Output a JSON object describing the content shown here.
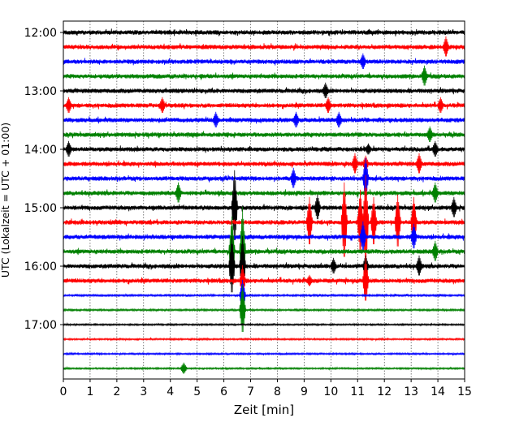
{
  "chart_data": {
    "type": "line",
    "chart_kind": "helicorder",
    "xlabel": "Zeit  [min]",
    "ylabel": "UTC (Lokalzeit = UTC + 01:00)",
    "xlim": [
      0,
      15
    ],
    "x_ticks": [
      0,
      1,
      2,
      3,
      4,
      5,
      6,
      7,
      8,
      9,
      10,
      11,
      12,
      13,
      14,
      15
    ],
    "grid": "x-only, dotted",
    "line_interval_min": 15,
    "trace_color_cycle": [
      "#000000",
      "#ff0000",
      "#0000ff",
      "#008000"
    ],
    "y_tick_labels": [
      "12:00",
      "13:00",
      "14:00",
      "15:00",
      "16:00",
      "17:00"
    ],
    "traces": [
      {
        "start": "12:00",
        "amp": 1.0,
        "spikes": []
      },
      {
        "start": "12:15",
        "amp": 1.0,
        "spikes": [
          {
            "t": 14.3,
            "a": 4
          }
        ]
      },
      {
        "start": "12:30",
        "amp": 1.0,
        "spikes": [
          {
            "t": 11.2,
            "a": 3
          }
        ]
      },
      {
        "start": "12:45",
        "amp": 1.0,
        "spikes": [
          {
            "t": 13.5,
            "a": 4
          }
        ]
      },
      {
        "start": "13:00",
        "amp": 1.0,
        "spikes": [
          {
            "t": 9.8,
            "a": 3
          }
        ]
      },
      {
        "start": "13:15",
        "amp": 1.0,
        "spikes": [
          {
            "t": 0.2,
            "a": 3
          },
          {
            "t": 3.7,
            "a": 3
          },
          {
            "t": 9.9,
            "a": 3
          },
          {
            "t": 14.1,
            "a": 3
          }
        ]
      },
      {
        "start": "13:30",
        "amp": 1.0,
        "spikes": [
          {
            "t": 5.7,
            "a": 3
          },
          {
            "t": 8.7,
            "a": 3
          },
          {
            "t": 10.3,
            "a": 3
          }
        ]
      },
      {
        "start": "13:45",
        "amp": 1.0,
        "spikes": [
          {
            "t": 13.7,
            "a": 3
          }
        ]
      },
      {
        "start": "14:00",
        "amp": 1.0,
        "spikes": [
          {
            "t": 0.2,
            "a": 3
          },
          {
            "t": 11.4,
            "a": 2
          },
          {
            "t": 13.9,
            "a": 3
          }
        ]
      },
      {
        "start": "14:15",
        "amp": 1.0,
        "spikes": [
          {
            "t": 10.9,
            "a": 4
          },
          {
            "t": 11.3,
            "a": 3
          },
          {
            "t": 13.3,
            "a": 4
          }
        ]
      },
      {
        "start": "14:30",
        "amp": 1.0,
        "spikes": [
          {
            "t": 8.6,
            "a": 4
          },
          {
            "t": 11.3,
            "a": 8
          }
        ]
      },
      {
        "start": "14:45",
        "amp": 1.0,
        "spikes": [
          {
            "t": 4.3,
            "a": 4
          },
          {
            "t": 13.9,
            "a": 4
          }
        ]
      },
      {
        "start": "15:00",
        "amp": 1.0,
        "spikes": [
          {
            "t": 6.4,
            "a": 15
          },
          {
            "t": 9.5,
            "a": 5
          },
          {
            "t": 14.6,
            "a": 4
          }
        ]
      },
      {
        "start": "15:15",
        "amp": 1.0,
        "spikes": [
          {
            "t": 9.2,
            "a": 10
          },
          {
            "t": 10.5,
            "a": 16
          },
          {
            "t": 11.1,
            "a": 13
          },
          {
            "t": 11.3,
            "a": 19
          },
          {
            "t": 11.6,
            "a": 10
          },
          {
            "t": 12.5,
            "a": 11
          },
          {
            "t": 13.1,
            "a": 10
          }
        ]
      },
      {
        "start": "15:30",
        "amp": 1.0,
        "spikes": [
          {
            "t": 11.2,
            "a": 6
          },
          {
            "t": 13.1,
            "a": 5
          }
        ]
      },
      {
        "start": "15:45",
        "amp": 1.0,
        "spikes": [
          {
            "t": 6.3,
            "a": 14
          },
          {
            "t": 6.7,
            "a": 18
          },
          {
            "t": 13.9,
            "a": 4
          }
        ]
      },
      {
        "start": "16:00",
        "amp": 1.0,
        "spikes": [
          {
            "t": 6.3,
            "a": 12
          },
          {
            "t": 6.7,
            "a": 12
          },
          {
            "t": 10.1,
            "a": 3
          },
          {
            "t": 11.3,
            "a": 4
          },
          {
            "t": 13.3,
            "a": 4
          }
        ]
      },
      {
        "start": "16:15",
        "amp": 1.0,
        "spikes": [
          {
            "t": 6.7,
            "a": 6
          },
          {
            "t": 9.2,
            "a": 2
          },
          {
            "t": 11.3,
            "a": 9
          }
        ]
      },
      {
        "start": "16:30",
        "amp": 0.4,
        "spikes": [
          {
            "t": 6.7,
            "a": 6
          }
        ]
      },
      {
        "start": "16:45",
        "amp": 0.4,
        "spikes": [
          {
            "t": 6.7,
            "a": 10
          }
        ]
      },
      {
        "start": "17:00",
        "amp": 0.35,
        "spikes": []
      },
      {
        "start": "17:15",
        "amp": 0.35,
        "spikes": []
      },
      {
        "start": "17:30",
        "amp": 0.35,
        "spikes": []
      },
      {
        "start": "17:45",
        "amp": 0.35,
        "spikes": [
          {
            "t": 4.5,
            "a": 2
          }
        ]
      }
    ]
  }
}
